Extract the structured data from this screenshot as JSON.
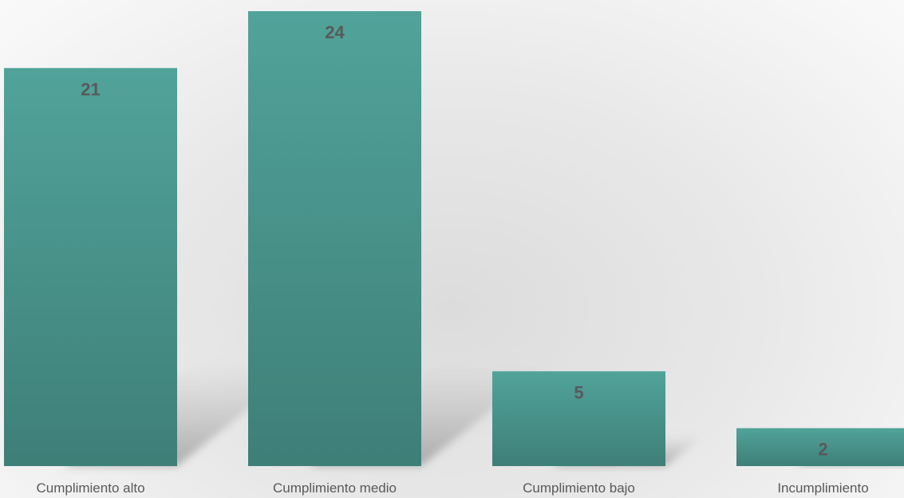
{
  "chart_data": {
    "type": "bar",
    "categories": [
      "Cumplimiento alto",
      "Cumplimiento medio",
      "Cumplimiento bajo",
      "Incumplimiento"
    ],
    "values": [
      21,
      24,
      5,
      2
    ],
    "data_labels": [
      "21",
      "24",
      "5",
      "2"
    ],
    "title": "",
    "xlabel": "",
    "ylabel": "",
    "ylim": [
      0,
      25
    ],
    "grid": false,
    "legend": "none",
    "bar_color_top": "#51a39a",
    "bar_color_bottom": "#3e7f78",
    "label_color": "#595959"
  }
}
